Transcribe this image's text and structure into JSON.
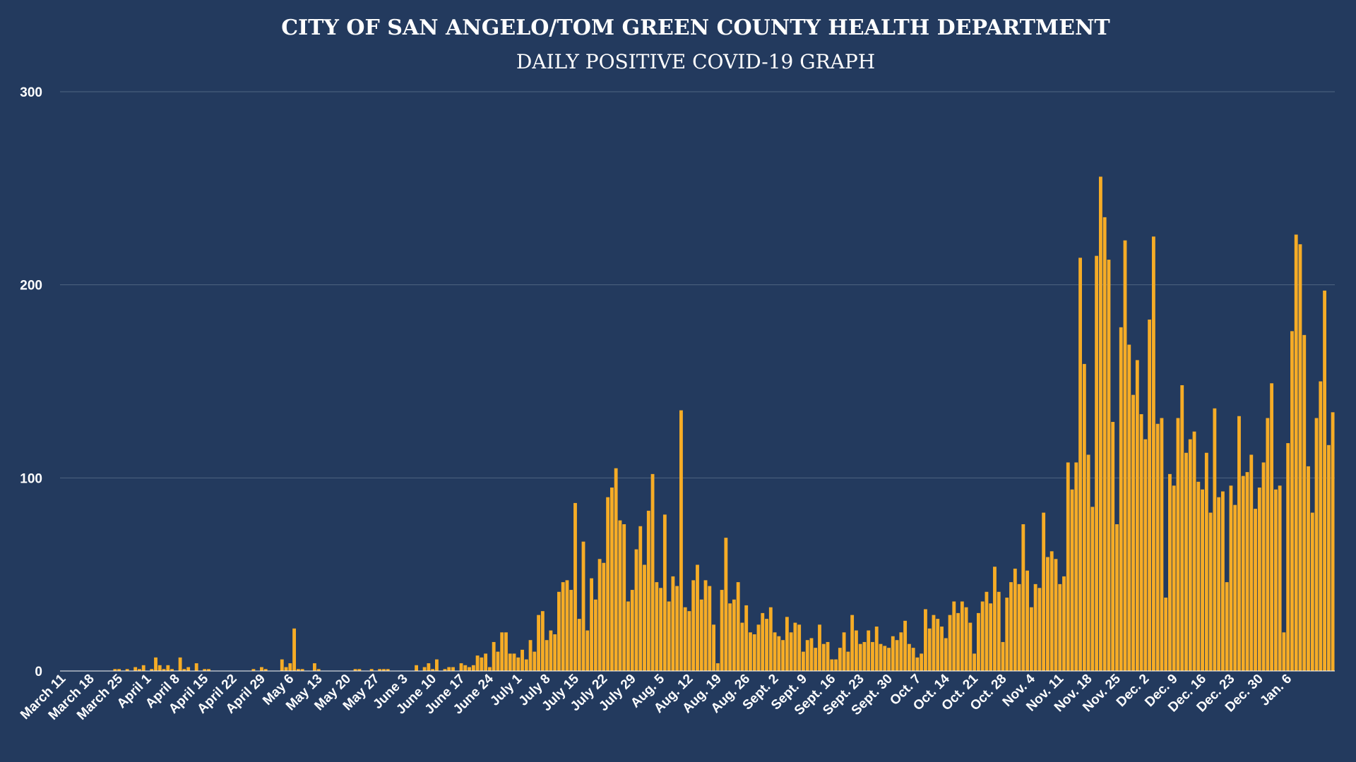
{
  "colors": {
    "background": "#233a5e",
    "bar": "#f6ac26",
    "grid": "#4f6582",
    "text": "#ffffff"
  },
  "chart_data": {
    "type": "bar",
    "title": "CITY OF SAN ANGELO/TOM GREEN COUNTY HEALTH DEPARTMENT",
    "subtitle": "DAILY POSITIVE COVID-19 GRAPH",
    "xlabel": "",
    "ylabel": "",
    "ylim": [
      0,
      300
    ],
    "yticks": [
      0,
      100,
      200,
      300
    ],
    "grid": true,
    "x_tick_labels": [
      "March 11",
      "March 18",
      "March 25",
      "April 1",
      "April 8",
      "April 15",
      "April 22",
      "April 29",
      "May 6",
      "May 13",
      "May 20",
      "May 27",
      "June 3",
      "June 10",
      "June 17",
      "June 24",
      "July 1",
      "July 8",
      "July 15",
      "July 22",
      "July 29",
      "Aug. 5",
      "Aug. 12",
      "Aug. 19",
      "Aug. 26",
      "Sept. 2",
      "Sept. 9",
      "Sept. 16",
      "Sept. 23",
      "Sept. 30",
      "Oct. 7",
      "Oct. 14",
      "Oct. 21",
      "Oct. 28",
      "Nov. 4",
      "Nov. 11",
      "Nov. 18",
      "Nov. 25",
      "Dec. 2",
      "Dec. 9",
      "Dec. 16",
      "Dec. 23",
      "Dec. 30",
      "Jan. 6"
    ],
    "x_tick_days": [
      0,
      7,
      14,
      21,
      28,
      35,
      42,
      49,
      56,
      63,
      70,
      77,
      84,
      91,
      98,
      105,
      112,
      119,
      126,
      133,
      140,
      147,
      154,
      161,
      168,
      175,
      182,
      189,
      196,
      203,
      210,
      217,
      224,
      231,
      238,
      245,
      252,
      259,
      266,
      273,
      280,
      287,
      294,
      301
    ],
    "start_date": "2020-03-11",
    "values": [
      0,
      0,
      0,
      0,
      0,
      0,
      0,
      0,
      0,
      0,
      0,
      0,
      0,
      1,
      1,
      0,
      1,
      0,
      2,
      1,
      3,
      0,
      1,
      7,
      3,
      1,
      3,
      1,
      0,
      7,
      1,
      2,
      0,
      4,
      0,
      1,
      1,
      0,
      0,
      0,
      0,
      0,
      0,
      0,
      0,
      0,
      0,
      1,
      0,
      2,
      1,
      0,
      0,
      0,
      6,
      2,
      4,
      22,
      1,
      1,
      0,
      0,
      4,
      1,
      0,
      0,
      0,
      0,
      0,
      0,
      0,
      0,
      1,
      1,
      0,
      0,
      1,
      0,
      1,
      1,
      1,
      0,
      0,
      0,
      0,
      0,
      0,
      3,
      0,
      2,
      4,
      1,
      6,
      0,
      1,
      2,
      2,
      0,
      4,
      3,
      2,
      3,
      8,
      7,
      9,
      2,
      15,
      10,
      20,
      20,
      9,
      9,
      7,
      11,
      6,
      16,
      10,
      29,
      31,
      16,
      21,
      19,
      41,
      46,
      47,
      42,
      87,
      27,
      67,
      21,
      48,
      37,
      58,
      56,
      90,
      95,
      105,
      78,
      76,
      36,
      42,
      63,
      75,
      55,
      83,
      102,
      46,
      43,
      81,
      36,
      49,
      44,
      135,
      33,
      31,
      47,
      55,
      37,
      47,
      44,
      24,
      4,
      42,
      69,
      35,
      37,
      46,
      25,
      34,
      20,
      19,
      24,
      30,
      27,
      33,
      20,
      18,
      16,
      28,
      20,
      25,
      24,
      10,
      16,
      17,
      12,
      24,
      14,
      15,
      6,
      6,
      12,
      20,
      10,
      29,
      21,
      14,
      15,
      21,
      15,
      23,
      14,
      13,
      12,
      18,
      16,
      20,
      26,
      14,
      12,
      7,
      9,
      32,
      22,
      29,
      27,
      23,
      17,
      29,
      36,
      30,
      36,
      33,
      25,
      9,
      30,
      36,
      41,
      35,
      54,
      41,
      15,
      38,
      46,
      53,
      45,
      76,
      52,
      33,
      45,
      43,
      82,
      59,
      62,
      58,
      45,
      49,
      108,
      94,
      108,
      214,
      159,
      112,
      85,
      215,
      256,
      235,
      213,
      129,
      76,
      178,
      223,
      169,
      143,
      161,
      133,
      120,
      182,
      225,
      128,
      131,
      38,
      102,
      96,
      131,
      148,
      113,
      120,
      124,
      98,
      94,
      113,
      82,
      136,
      90,
      93,
      46,
      96,
      86,
      132,
      101,
      103,
      112,
      84,
      95,
      108,
      131,
      149,
      94,
      96,
      20,
      118,
      176,
      226,
      221,
      174,
      106,
      82,
      131,
      150,
      197,
      117,
      134
    ]
  }
}
